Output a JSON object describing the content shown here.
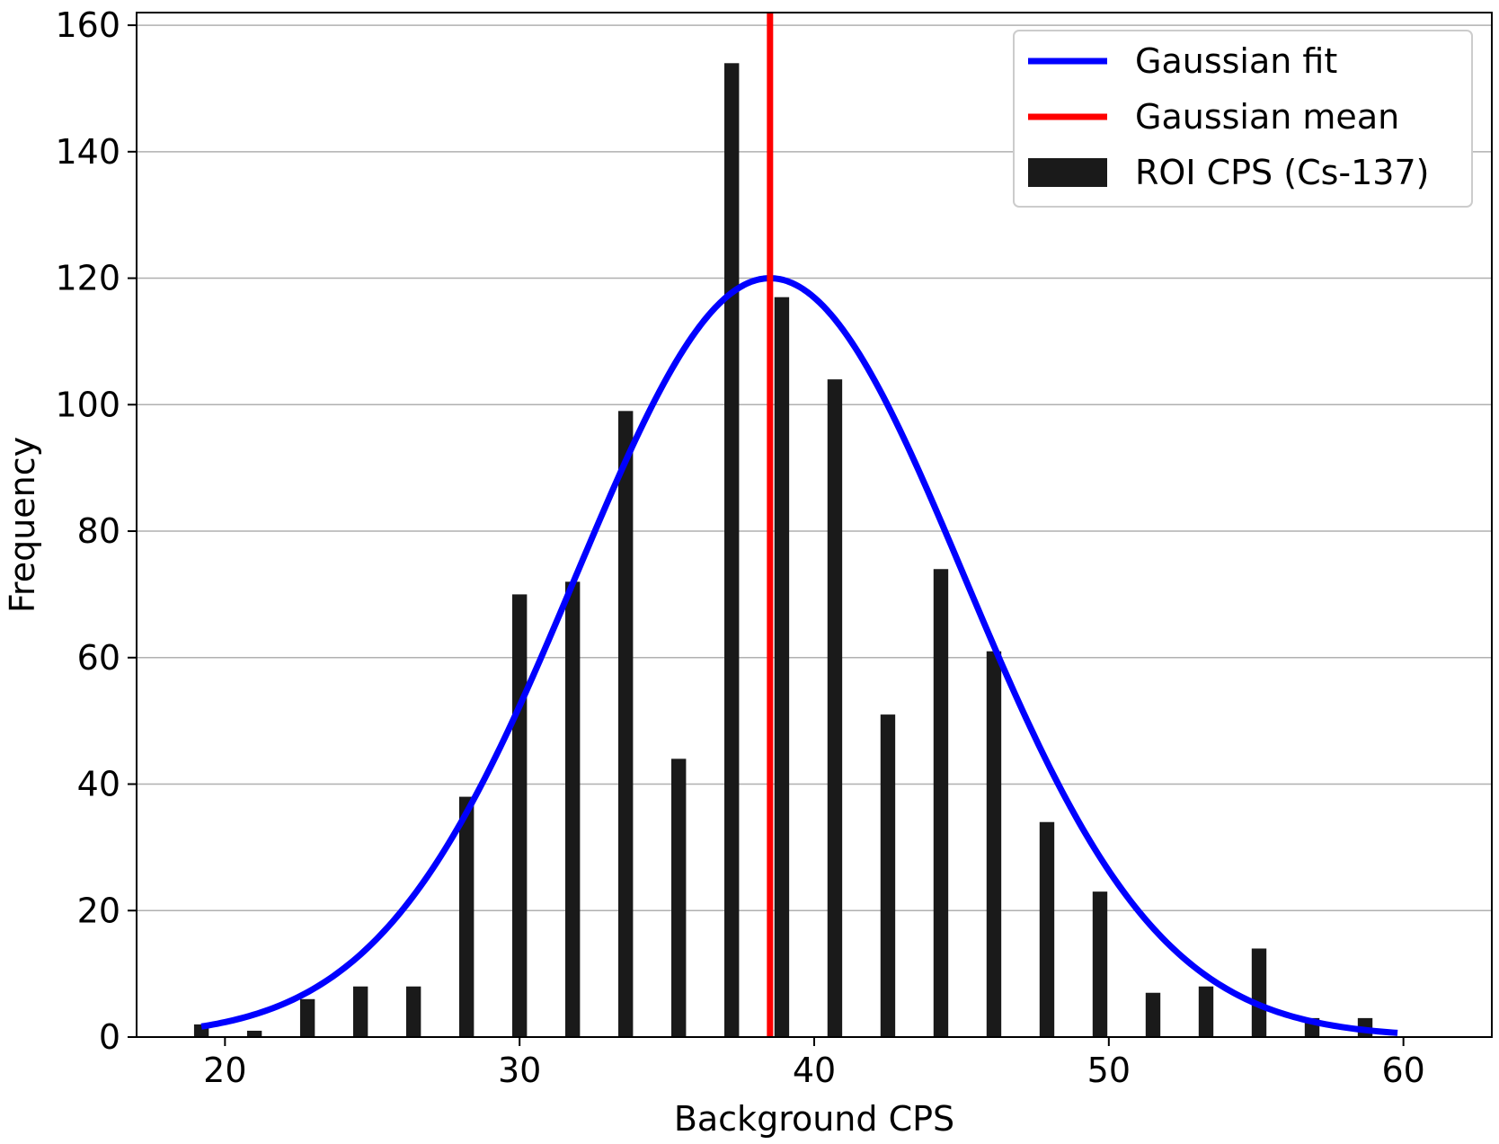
{
  "chart_data": {
    "type": "bar",
    "xlabel": "Background CPS",
    "ylabel": "Frequency",
    "xlim": [
      17,
      63
    ],
    "ylim": [
      0,
      162
    ],
    "xticks": [
      20,
      30,
      40,
      50,
      60
    ],
    "yticks": [
      0,
      20,
      40,
      60,
      80,
      100,
      120,
      140,
      160
    ],
    "grid": "horizontal",
    "legend_position": "top-right",
    "bar_width": 0.5,
    "series": [
      {
        "name": "ROI CPS (Cs-137)",
        "kind": "bar",
        "color": "#1a1a1a",
        "x": [
          19.2,
          21.0,
          22.8,
          24.6,
          26.4,
          28.2,
          30.0,
          31.8,
          33.6,
          35.4,
          37.2,
          38.9,
          40.7,
          42.5,
          44.3,
          46.1,
          47.9,
          49.7,
          51.5,
          53.3,
          55.1,
          56.9,
          58.7
        ],
        "values": [
          2,
          1,
          6,
          8,
          8,
          38,
          70,
          72,
          99,
          44,
          154,
          117,
          104,
          51,
          74,
          61,
          34,
          23,
          7,
          8,
          14,
          3,
          3
        ]
      },
      {
        "name": "Gaussian fit",
        "kind": "line",
        "color": "#0000ff",
        "amplitude": 120,
        "mean": 38.5,
        "sigma": 6.6,
        "x_range": [
          19.2,
          59.8
        ]
      },
      {
        "name": "Gaussian mean",
        "kind": "vline",
        "color": "#ff0000",
        "x": 38.5
      }
    ],
    "legend": [
      {
        "label": "Gaussian fit",
        "kind": "line",
        "color": "#0000ff"
      },
      {
        "label": "Gaussian mean",
        "kind": "line",
        "color": "#ff0000"
      },
      {
        "label": "ROI CPS (Cs-137)",
        "kind": "patch",
        "color": "#1a1a1a"
      }
    ]
  }
}
